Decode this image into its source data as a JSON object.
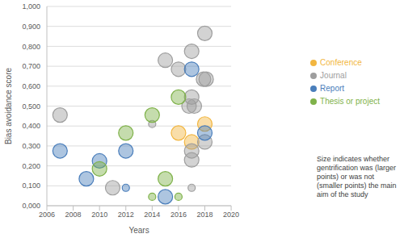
{
  "chart_data": {
    "type": "scatter",
    "x_label": "Years",
    "y_label": "Bias avoidance score",
    "xlim": [
      2006,
      2020
    ],
    "xticks": [
      2006,
      2008,
      2010,
      2012,
      2014,
      2016,
      2018,
      2020
    ],
    "ylim": [
      0,
      1
    ],
    "yticks": [
      {
        "value": 0,
        "label": "0,000"
      },
      {
        "value": 0.1,
        "label": "0,100"
      },
      {
        "value": 0.2,
        "label": "0,200"
      },
      {
        "value": 0.3,
        "label": "0,300"
      },
      {
        "value": 0.4,
        "label": "0,400"
      },
      {
        "value": 0.5,
        "label": "0,500"
      },
      {
        "value": 0.6,
        "label": "0,600"
      },
      {
        "value": 0.7,
        "label": "0,700"
      },
      {
        "value": 0.8,
        "label": "0,800"
      },
      {
        "value": 0.9,
        "label": "0,900"
      },
      {
        "value": 1,
        "label": "1,000"
      }
    ],
    "grid": true,
    "legend": "right",
    "marker": "circle",
    "annotation": "Size indicates whether gentrification was (larger points) or was not (smaller points) the main aim of the study",
    "series": [
      {
        "name": "Conference",
        "color": "#f2b640",
        "x": [
          2016,
          2017,
          2018
        ],
        "values": [
          0.365,
          0.32,
          0.41
        ],
        "main_aim": [
          true,
          true,
          true
        ]
      },
      {
        "name": "Journal",
        "color": "#9e9e9e",
        "x": [
          2007,
          2011,
          2014,
          2015,
          2016,
          2017,
          2017,
          2016.8,
          2017.2,
          2017,
          2017,
          2017,
          2018,
          2017.9,
          2018.1,
          2018
        ],
        "values": [
          0.455,
          0.09,
          0.41,
          0.73,
          0.685,
          0.775,
          0.545,
          0.5,
          0.5,
          0.275,
          0.23,
          0.09,
          0.865,
          0.635,
          0.635,
          0.32
        ],
        "main_aim": [
          true,
          true,
          false,
          true,
          true,
          true,
          true,
          true,
          true,
          true,
          true,
          false,
          true,
          true,
          true,
          true
        ]
      },
      {
        "name": "Report",
        "color": "#4a7ebb",
        "x": [
          2007,
          2009,
          2010,
          2012,
          2012,
          2015,
          2017,
          2018
        ],
        "values": [
          0.275,
          0.135,
          0.225,
          0.275,
          0.09,
          0.045,
          0.685,
          0.365
        ],
        "main_aim": [
          true,
          true,
          true,
          true,
          false,
          true,
          true,
          true
        ]
      },
      {
        "name": "Thesis or project",
        "color": "#7fb24a",
        "x": [
          2010,
          2012,
          2014,
          2014,
          2015,
          2016,
          2016
        ],
        "values": [
          0.185,
          0.365,
          0.455,
          0.045,
          0.135,
          0.545,
          0.045
        ],
        "main_aim": [
          true,
          true,
          true,
          false,
          true,
          true,
          false
        ]
      }
    ]
  }
}
